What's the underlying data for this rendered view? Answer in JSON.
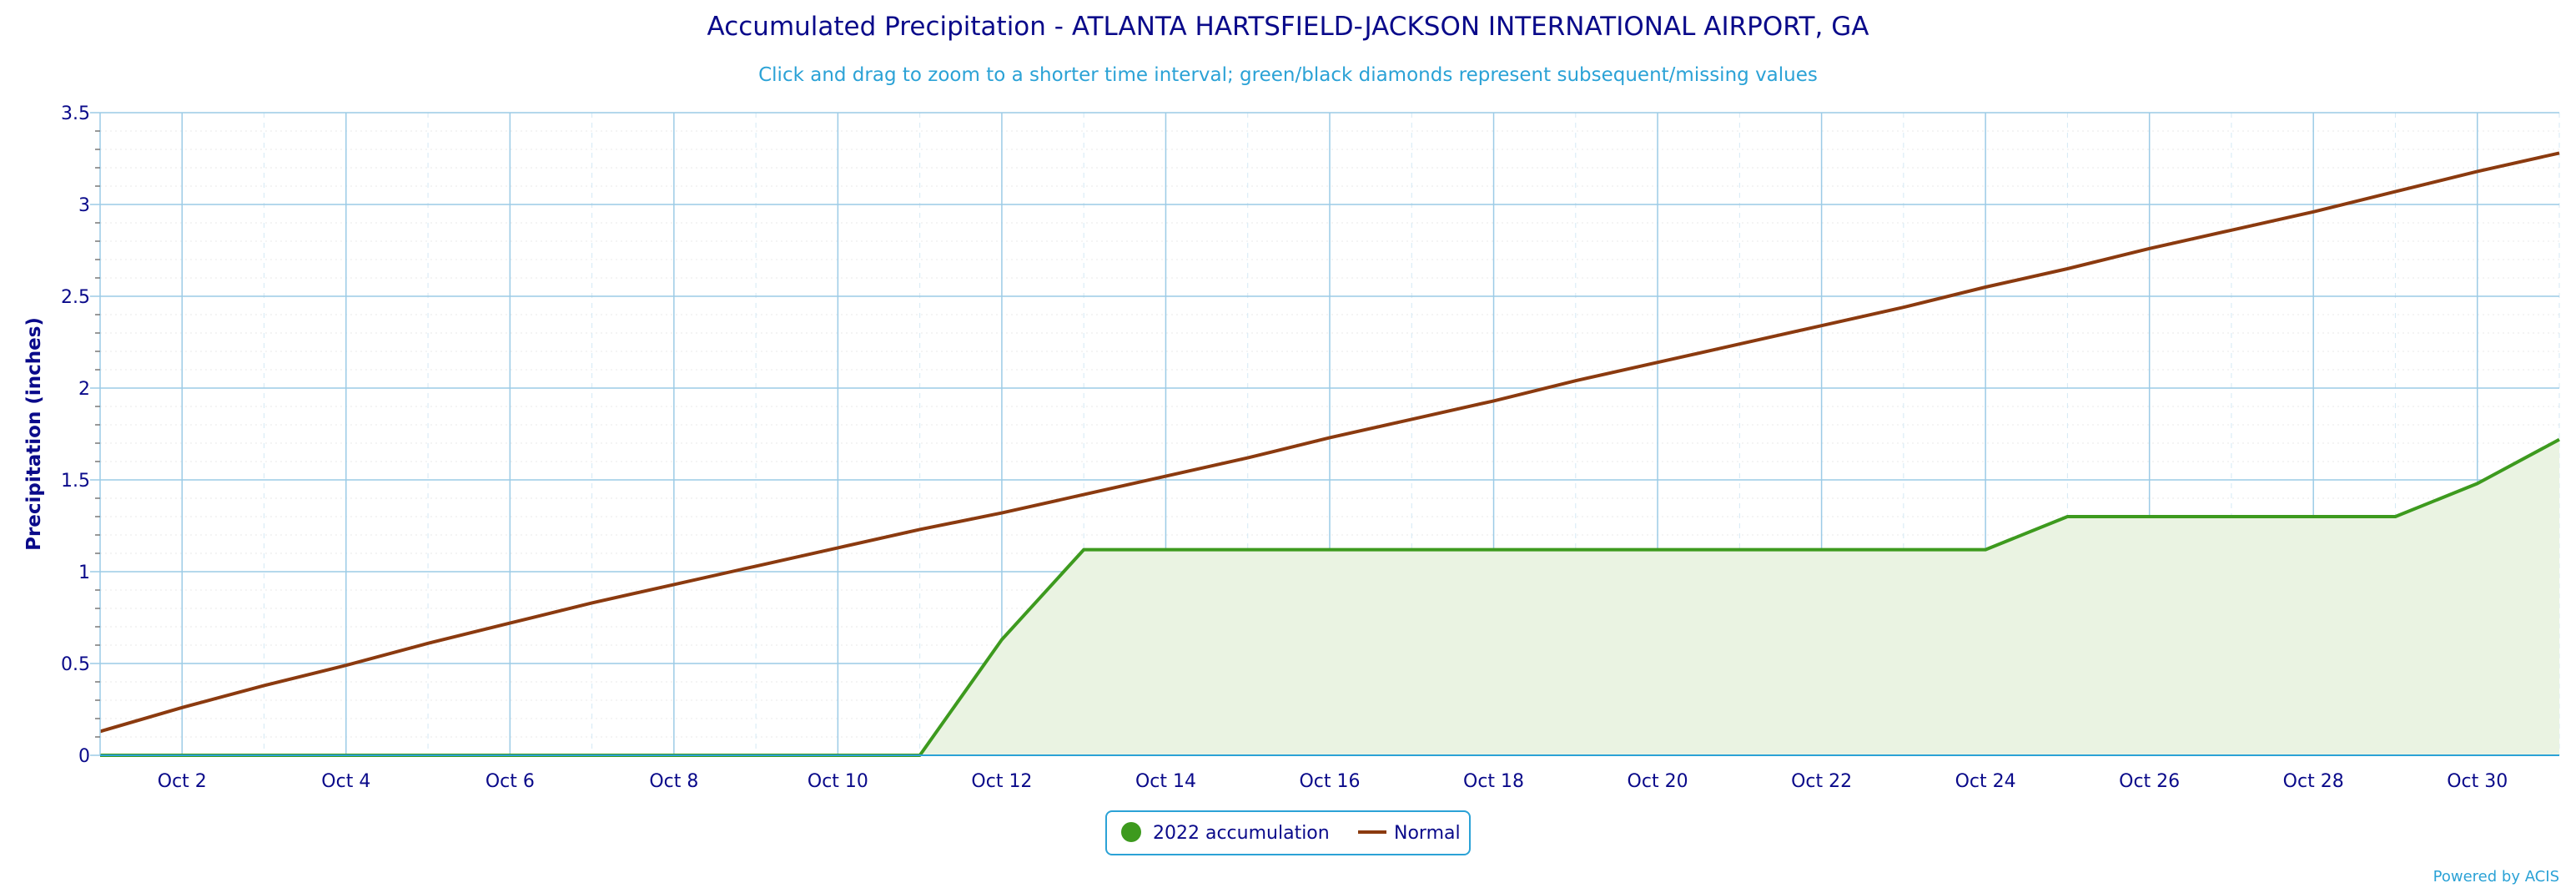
{
  "chart_data": {
    "type": "line",
    "title": "Accumulated Precipitation - ATLANTA HARTSFIELD-JACKSON INTERNATIONAL AIRPORT, GA",
    "subtitle": "Click and drag to zoom to a shorter time interval; green/black diamonds represent subsequent/missing values",
    "ylabel": "Precipitation (inches)",
    "xlabel": "",
    "ylim": [
      0,
      3.5
    ],
    "y_ticks": [
      0,
      0.5,
      1,
      1.5,
      2,
      2.5,
      3,
      3.5
    ],
    "y_tick_labels": [
      "0",
      "0.5",
      "1",
      "1.5",
      "2",
      "2.5",
      "3",
      "3.5"
    ],
    "x_range_days": [
      1,
      31
    ],
    "x_ticks": [
      2,
      4,
      6,
      8,
      10,
      12,
      14,
      16,
      18,
      20,
      22,
      24,
      26,
      28,
      30
    ],
    "x_tick_labels": [
      "Oct 2",
      "Oct 4",
      "Oct 6",
      "Oct 8",
      "Oct 10",
      "Oct 12",
      "Oct 14",
      "Oct 16",
      "Oct 18",
      "Oct 20",
      "Oct 22",
      "Oct 24",
      "Oct 26",
      "Oct 28",
      "Oct 30"
    ],
    "grid": true,
    "legend_position": "bottom-center",
    "series": [
      {
        "name": "2022 accumulation",
        "color": "#3d9a1e",
        "fill": "#eaf3e2",
        "marker": "circle",
        "x": [
          1,
          2,
          3,
          4,
          5,
          6,
          7,
          8,
          9,
          10,
          11,
          12,
          13,
          14,
          15,
          16,
          17,
          18,
          19,
          20,
          21,
          22,
          23,
          24,
          25,
          26,
          27,
          28,
          29,
          30,
          31
        ],
        "values": [
          0,
          0,
          0,
          0,
          0,
          0,
          0,
          0,
          0,
          0,
          0,
          0.63,
          1.12,
          1.12,
          1.12,
          1.12,
          1.12,
          1.12,
          1.12,
          1.12,
          1.12,
          1.12,
          1.12,
          1.12,
          1.3,
          1.3,
          1.3,
          1.3,
          1.3,
          1.48,
          1.72
        ]
      },
      {
        "name": "Normal",
        "color": "#8b3a0f",
        "marker": "line",
        "x": [
          1,
          2,
          3,
          4,
          5,
          6,
          7,
          8,
          9,
          10,
          11,
          12,
          13,
          14,
          15,
          16,
          17,
          18,
          19,
          20,
          21,
          22,
          23,
          24,
          25,
          26,
          27,
          28,
          29,
          30,
          31
        ],
        "values": [
          0.13,
          0.26,
          0.38,
          0.49,
          0.61,
          0.72,
          0.83,
          0.93,
          1.03,
          1.13,
          1.23,
          1.32,
          1.42,
          1.52,
          1.62,
          1.73,
          1.83,
          1.93,
          2.04,
          2.14,
          2.24,
          2.34,
          2.44,
          2.55,
          2.65,
          2.76,
          2.86,
          2.96,
          3.07,
          3.18,
          3.28
        ]
      }
    ]
  },
  "credit": "Powered by ACIS"
}
